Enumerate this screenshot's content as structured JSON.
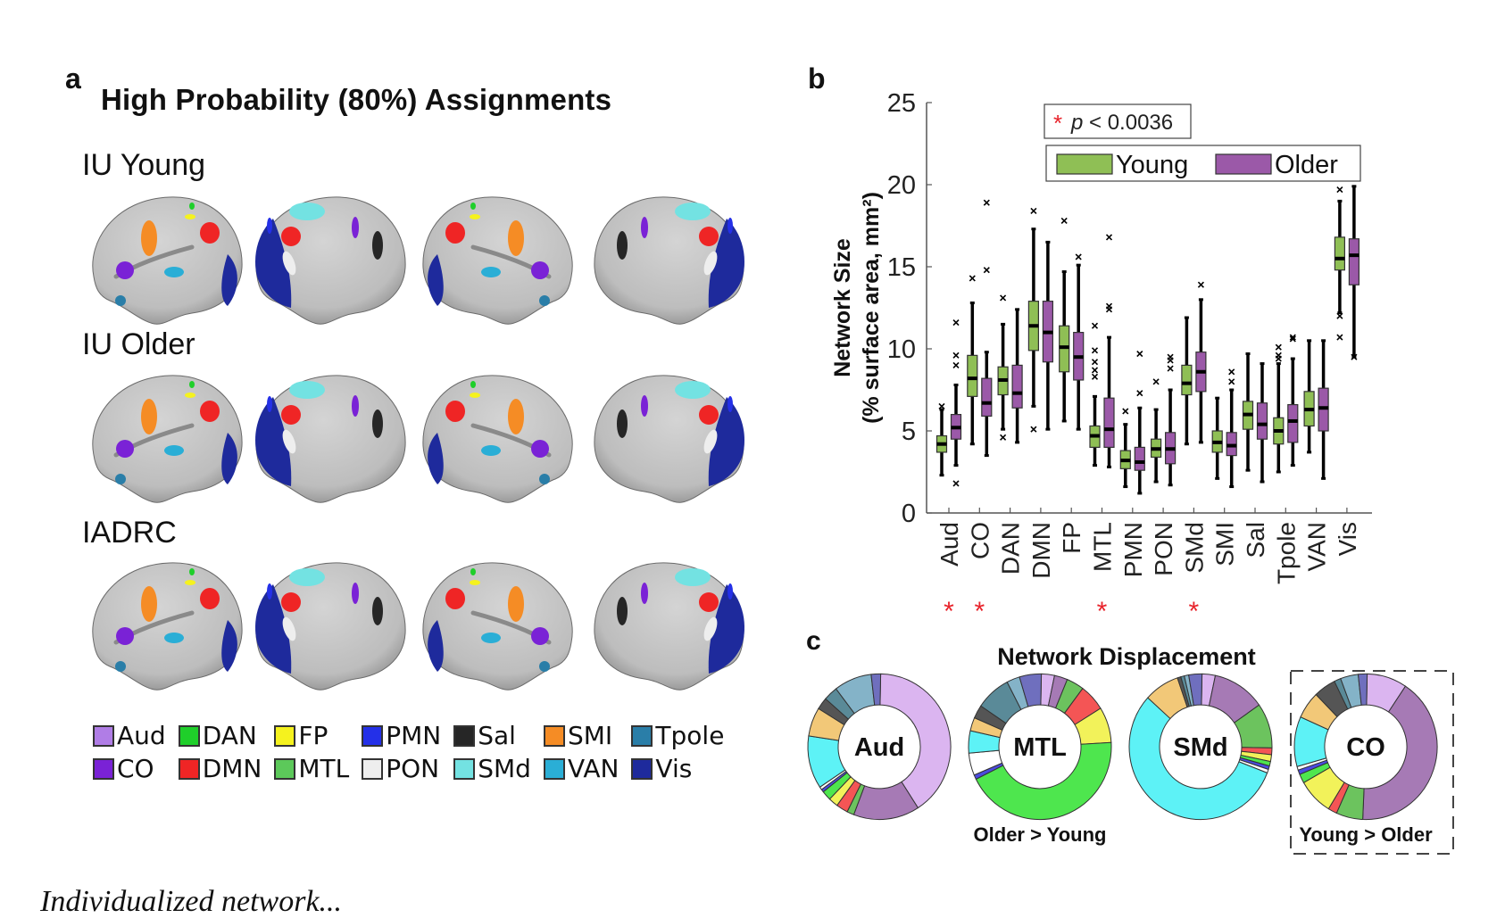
{
  "panel_a": {
    "letter": "a",
    "title": "High Probability (80%) Assignments",
    "rows": [
      {
        "label": "IU Young"
      },
      {
        "label": "IU Older"
      },
      {
        "label": "IADRC"
      }
    ],
    "legend": [
      {
        "label": "Aud",
        "color": "#b07de6"
      },
      {
        "label": "DAN",
        "color": "#1fcf2a"
      },
      {
        "label": "FP",
        "color": "#f5f21e"
      },
      {
        "label": "PMN",
        "color": "#2430e8"
      },
      {
        "label": "Sal",
        "color": "#262626"
      },
      {
        "label": "SMI",
        "color": "#f58c25"
      },
      {
        "label": "Tpole",
        "color": "#2a7ea8"
      },
      {
        "label": "CO",
        "color": "#7a22d6"
      },
      {
        "label": "DMN",
        "color": "#ef2525"
      },
      {
        "label": "MTL",
        "color": "#5cc95a"
      },
      {
        "label": "PON",
        "color": "#eeeeee"
      },
      {
        "label": "SMd",
        "color": "#73e2e2"
      },
      {
        "label": "VAN",
        "color": "#2aaed6"
      },
      {
        "label": "Vis",
        "color": "#1e2a9c"
      }
    ]
  },
  "chart_data": [
    {
      "type": "box",
      "panel": "b",
      "ylabel_line1": "Network Size",
      "ylabel_line2": "(% surface area, mm²)",
      "ylim": [
        0,
        25
      ],
      "yticks": [
        0,
        5,
        10,
        15,
        20,
        25
      ],
      "categories": [
        "Aud",
        "CO",
        "DAN",
        "DMN",
        "FP",
        "MTL",
        "PMN",
        "PON",
        "SMd",
        "SMI",
        "Sal",
        "Tpole",
        "VAN",
        "Vis"
      ],
      "significant": [
        "Aud",
        "CO",
        "MTL",
        "SMd"
      ],
      "significance_marker": "*",
      "significance_label": "p < 0.0036",
      "significance_label_italic_part": "p",
      "series": [
        {
          "name": "Young",
          "color": "#8fbf55",
          "boxes": [
            {
              "min": 2.3,
              "q1": 3.7,
              "median": 4.2,
              "q3": 4.7,
              "max": 6.3,
              "outliers": [
                6.5
              ]
            },
            {
              "min": 4.2,
              "q1": 7.1,
              "median": 8.2,
              "q3": 9.6,
              "max": 12.8,
              "outliers": [
                14.3
              ]
            },
            {
              "min": 5.1,
              "q1": 7.2,
              "median": 8.1,
              "q3": 8.9,
              "max": 11.5,
              "outliers": [
                13.1,
                4.6
              ]
            },
            {
              "min": 6.5,
              "q1": 9.9,
              "median": 11.4,
              "q3": 12.9,
              "max": 17.3,
              "outliers": [
                18.4,
                5.1
              ]
            },
            {
              "min": 5.6,
              "q1": 8.6,
              "median": 10.1,
              "q3": 11.4,
              "max": 14.7,
              "outliers": [
                17.8
              ]
            },
            {
              "min": 2.9,
              "q1": 4.0,
              "median": 4.7,
              "q3": 5.3,
              "max": 7.1,
              "outliers": [
                8.3,
                8.7,
                9.2,
                9.9,
                11.4
              ]
            },
            {
              "min": 1.6,
              "q1": 2.7,
              "median": 3.2,
              "q3": 3.8,
              "max": 5.4,
              "outliers": [
                6.2
              ]
            },
            {
              "min": 1.9,
              "q1": 3.4,
              "median": 3.9,
              "q3": 4.5,
              "max": 6.3,
              "outliers": [
                8.0
              ]
            },
            {
              "min": 4.2,
              "q1": 7.2,
              "median": 7.9,
              "q3": 9.0,
              "max": 11.9,
              "outliers": []
            },
            {
              "min": 2.1,
              "q1": 3.7,
              "median": 4.3,
              "q3": 5.0,
              "max": 7.0,
              "outliers": []
            },
            {
              "min": 2.6,
              "q1": 5.1,
              "median": 6.0,
              "q3": 6.8,
              "max": 9.7,
              "outliers": []
            },
            {
              "min": 2.5,
              "q1": 4.2,
              "median": 5.0,
              "q3": 5.8,
              "max": 9.1,
              "outliers": [
                9.4,
                9.6,
                10.1
              ]
            },
            {
              "min": 3.7,
              "q1": 5.3,
              "median": 6.3,
              "q3": 7.4,
              "max": 10.5,
              "outliers": []
            },
            {
              "min": 12.2,
              "q1": 14.8,
              "median": 15.5,
              "q3": 16.8,
              "max": 19.0,
              "outliers": [
                19.7,
                12.0,
                10.7
              ]
            }
          ]
        },
        {
          "name": "Older",
          "color": "#9b59a8",
          "boxes": [
            {
              "min": 2.9,
              "q1": 4.5,
              "median": 5.2,
              "q3": 6.0,
              "max": 7.8,
              "outliers": [
                11.6,
                9.6,
                9.0,
                1.8
              ]
            },
            {
              "min": 3.5,
              "q1": 5.9,
              "median": 6.7,
              "q3": 8.2,
              "max": 9.8,
              "outliers": [
                18.9,
                14.8
              ]
            },
            {
              "min": 4.3,
              "q1": 6.4,
              "median": 7.3,
              "q3": 9.0,
              "max": 12.4,
              "outliers": []
            },
            {
              "min": 5.1,
              "q1": 9.2,
              "median": 11.0,
              "q3": 12.9,
              "max": 16.5,
              "outliers": []
            },
            {
              "min": 5.1,
              "q1": 8.1,
              "median": 9.5,
              "q3": 11.0,
              "max": 15.1,
              "outliers": [
                15.6
              ]
            },
            {
              "min": 2.8,
              "q1": 4.0,
              "median": 5.1,
              "q3": 7.0,
              "max": 10.7,
              "outliers": [
                12.4,
                12.6,
                16.8
              ]
            },
            {
              "min": 1.2,
              "q1": 2.6,
              "median": 3.1,
              "q3": 4.0,
              "max": 6.4,
              "outliers": [
                7.3,
                9.7
              ]
            },
            {
              "min": 1.7,
              "q1": 3.0,
              "median": 3.9,
              "q3": 4.9,
              "max": 7.5,
              "outliers": [
                8.8,
                9.3,
                9.5
              ]
            },
            {
              "min": 4.3,
              "q1": 7.4,
              "median": 8.6,
              "q3": 9.8,
              "max": 13.0,
              "outliers": [
                13.9
              ]
            },
            {
              "min": 1.6,
              "q1": 3.5,
              "median": 4.1,
              "q3": 4.9,
              "max": 7.5,
              "outliers": [
                8.0,
                8.6
              ]
            },
            {
              "min": 1.9,
              "q1": 4.5,
              "median": 5.4,
              "q3": 6.7,
              "max": 9.1,
              "outliers": []
            },
            {
              "min": 2.9,
              "q1": 4.3,
              "median": 5.6,
              "q3": 6.6,
              "max": 9.4,
              "outliers": [
                10.6,
                10.7
              ]
            },
            {
              "min": 2.1,
              "q1": 5.0,
              "median": 6.4,
              "q3": 7.6,
              "max": 10.5,
              "outliers": []
            },
            {
              "min": 9.5,
              "q1": 13.9,
              "median": 15.7,
              "q3": 16.7,
              "max": 19.9,
              "outliers": [
                20.8,
                9.5
              ]
            }
          ]
        }
      ]
    },
    {
      "type": "pie",
      "panel": "c",
      "title": "Network Displacement",
      "donuts": [
        {
          "label": "Aud",
          "caption": "",
          "highlight": false,
          "slices": [
            {
              "network": "Aud",
              "color": "#dbb5f0",
              "value": 38
            },
            {
              "network": "CO",
              "color": "#a67ab5",
              "value": 14
            },
            {
              "network": "MTL",
              "color": "#6cc35e",
              "value": 1.5
            },
            {
              "network": "DMN",
              "color": "#f45555",
              "value": 2.5
            },
            {
              "network": "FP",
              "color": "#f2f25a",
              "value": 2
            },
            {
              "network": "DAN",
              "color": "#4ee64e",
              "value": 2
            },
            {
              "network": "PMN",
              "color": "#4b4be0",
              "value": 0.6
            },
            {
              "network": "PON",
              "color": "#ffffff",
              "value": 0.6
            },
            {
              "network": "SMd",
              "color": "#5df2f6",
              "value": 11
            },
            {
              "network": "SMI",
              "color": "#f2c878",
              "value": 6
            },
            {
              "network": "Sal",
              "color": "#555555",
              "value": 2.5
            },
            {
              "network": "Tpole",
              "color": "#5a8a98",
              "value": 3
            },
            {
              "network": "VAN",
              "color": "#84b3c8",
              "value": 8
            },
            {
              "network": "Vis",
              "color": "#6f6fbe",
              "value": 2
            }
          ]
        },
        {
          "label": "MTL",
          "caption": "Older > Young",
          "highlight": false,
          "slices": [
            {
              "network": "Aud",
              "color": "#dbb5f0",
              "value": 3
            },
            {
              "network": "CO",
              "color": "#a67ab5",
              "value": 3
            },
            {
              "network": "MTL",
              "color": "#6cc35e",
              "value": 4
            },
            {
              "network": "DMN",
              "color": "#f45555",
              "value": 6
            },
            {
              "network": "FP",
              "color": "#f2f25a",
              "value": 8
            },
            {
              "network": "DAN",
              "color": "#4ee64e",
              "value": 44
            },
            {
              "network": "PMN",
              "color": "#4b4be0",
              "value": 1
            },
            {
              "network": "PON",
              "color": "#ffffff",
              "value": 5
            },
            {
              "network": "SMd",
              "color": "#5df2f6",
              "value": 5
            },
            {
              "network": "SMI",
              "color": "#f2c878",
              "value": 3
            },
            {
              "network": "Sal",
              "color": "#555555",
              "value": 3
            },
            {
              "network": "Tpole",
              "color": "#5a8a98",
              "value": 8
            },
            {
              "network": "VAN",
              "color": "#84b3c8",
              "value": 3
            },
            {
              "network": "Vis",
              "color": "#6f6fbe",
              "value": 5
            }
          ]
        },
        {
          "label": "SMd",
          "caption": "",
          "highlight": false,
          "slices": [
            {
              "network": "Aud",
              "color": "#dbb5f0",
              "value": 3
            },
            {
              "network": "CO",
              "color": "#a67ab5",
              "value": 12
            },
            {
              "network": "MTL",
              "color": "#6cc35e",
              "value": 10
            },
            {
              "network": "DMN",
              "color": "#f45555",
              "value": 1.5
            },
            {
              "network": "FP",
              "color": "#f2f25a",
              "value": 1.5
            },
            {
              "network": "DAN",
              "color": "#4ee64e",
              "value": 1
            },
            {
              "network": "PMN",
              "color": "#4b4be0",
              "value": 0.8
            },
            {
              "network": "PON",
              "color": "#ffffff",
              "value": 0.8
            },
            {
              "network": "SMd",
              "color": "#5df2f6",
              "value": 56
            },
            {
              "network": "SMI",
              "color": "#f2c878",
              "value": 8
            },
            {
              "network": "Sal",
              "color": "#555555",
              "value": 0.8
            },
            {
              "network": "Tpole",
              "color": "#5a8a98",
              "value": 0.8
            },
            {
              "network": "VAN",
              "color": "#84b3c8",
              "value": 1
            },
            {
              "network": "Vis",
              "color": "#6f6fbe",
              "value": 3
            }
          ]
        },
        {
          "label": "CO",
          "caption": "Young  > Older",
          "highlight": true,
          "slices": [
            {
              "network": "Aud",
              "color": "#dbb5f0",
              "value": 9
            },
            {
              "network": "CO",
              "color": "#a67ab5",
              "value": 41
            },
            {
              "network": "MTL",
              "color": "#6cc35e",
              "value": 6
            },
            {
              "network": "DMN",
              "color": "#f45555",
              "value": 2
            },
            {
              "network": "FP",
              "color": "#f2f25a",
              "value": 8
            },
            {
              "network": "DAN",
              "color": "#4ee64e",
              "value": 2
            },
            {
              "network": "PMN",
              "color": "#4b4be0",
              "value": 1
            },
            {
              "network": "PON",
              "color": "#ffffff",
              "value": 0.8
            },
            {
              "network": "SMd",
              "color": "#5df2f6",
              "value": 11
            },
            {
              "network": "SMI",
              "color": "#f2c878",
              "value": 6
            },
            {
              "network": "Sal",
              "color": "#555555",
              "value": 5
            },
            {
              "network": "Tpole",
              "color": "#5a8a98",
              "value": 1.5
            },
            {
              "network": "VAN",
              "color": "#84b3c8",
              "value": 4
            },
            {
              "network": "Vis",
              "color": "#6f6fbe",
              "value": 2
            }
          ]
        }
      ]
    }
  ],
  "panel_b": {
    "letter": "b"
  },
  "panel_c": {
    "letter": "c"
  },
  "caption_fragment": "Individualized network..."
}
